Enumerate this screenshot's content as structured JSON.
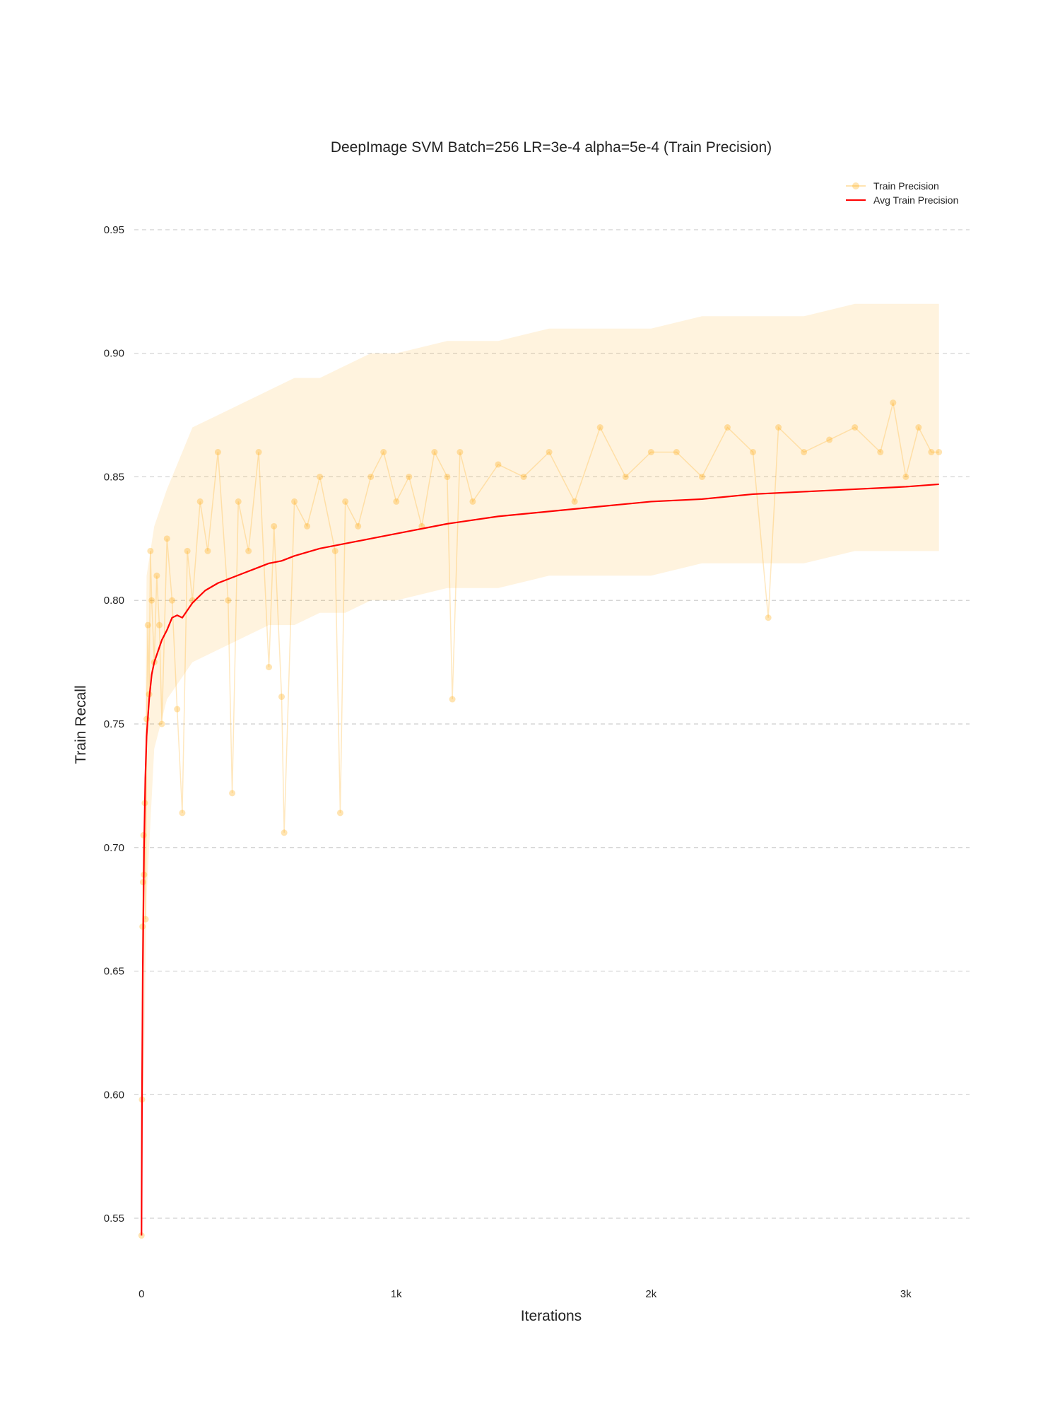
{
  "chart_data": {
    "type": "line",
    "title": "DeepImage SVM Batch=256 LR=3e-4 alpha=5e-4 (Train Precision)",
    "xlabel": "Iterations",
    "ylabel": "Train Recall",
    "xlim": [
      -70,
      3300
    ],
    "ylim": [
      0.532,
      0.968
    ],
    "grid": true,
    "legend_position": "top-right",
    "x_ticks": [
      {
        "value": 0,
        "label": "0"
      },
      {
        "value": 1000,
        "label": "1k"
      },
      {
        "value": 2000,
        "label": "2k"
      },
      {
        "value": 3000,
        "label": "3k"
      }
    ],
    "y_ticks": [
      {
        "value": 0.55,
        "label": "0.55"
      },
      {
        "value": 0.6,
        "label": "0.60"
      },
      {
        "value": 0.65,
        "label": "0.65"
      },
      {
        "value": 0.7,
        "label": "0.70"
      },
      {
        "value": 0.75,
        "label": "0.75"
      },
      {
        "value": 0.8,
        "label": "0.80"
      },
      {
        "value": 0.85,
        "label": "0.85"
      },
      {
        "value": 0.9,
        "label": "0.90"
      },
      {
        "value": 0.95,
        "label": "0.95"
      }
    ],
    "series": [
      {
        "name": "Train Precision",
        "style": "line+markers",
        "color": "#ffa500",
        "opacity": 0.25,
        "x": [
          0,
          2,
          4,
          6,
          8,
          10,
          13,
          16,
          20,
          25,
          30,
          35,
          40,
          50,
          60,
          70,
          80,
          100,
          120,
          140,
          160,
          180,
          200,
          230,
          260,
          300,
          340,
          356,
          380,
          420,
          460,
          500,
          520,
          550,
          560,
          600,
          650,
          700,
          760,
          780,
          800,
          850,
          900,
          950,
          1000,
          1050,
          1100,
          1150,
          1200,
          1220,
          1250,
          1300,
          1400,
          1500,
          1600,
          1700,
          1800,
          1900,
          2000,
          2100,
          2200,
          2300,
          2400,
          2460,
          2500,
          2600,
          2700,
          2800,
          2900,
          2950,
          3000,
          3050,
          3100,
          3130
        ],
        "y": [
          0.543,
          0.598,
          0.668,
          0.686,
          0.705,
          0.689,
          0.718,
          0.671,
          0.752,
          0.79,
          0.762,
          0.82,
          0.8,
          0.775,
          0.81,
          0.79,
          0.75,
          0.825,
          0.8,
          0.756,
          0.714,
          0.82,
          0.8,
          0.84,
          0.82,
          0.86,
          0.8,
          0.722,
          0.84,
          0.82,
          0.86,
          0.773,
          0.83,
          0.761,
          0.706,
          0.84,
          0.83,
          0.85,
          0.82,
          0.714,
          0.84,
          0.83,
          0.85,
          0.86,
          0.84,
          0.85,
          0.83,
          0.86,
          0.85,
          0.76,
          0.86,
          0.84,
          0.855,
          0.85,
          0.86,
          0.84,
          0.87,
          0.85,
          0.86,
          0.86,
          0.85,
          0.87,
          0.86,
          0.793,
          0.87,
          0.86,
          0.865,
          0.87,
          0.86,
          0.88,
          0.85,
          0.87,
          0.86,
          0.86
        ],
        "band": {
          "x": [
            0,
            20,
            50,
            100,
            200,
            300,
            400,
            500,
            600,
            700,
            800,
            900,
            1000,
            1200,
            1400,
            1600,
            1800,
            2000,
            2200,
            2400,
            2600,
            2800,
            3000,
            3130
          ],
          "high": [
            0.55,
            0.81,
            0.83,
            0.845,
            0.87,
            0.875,
            0.88,
            0.885,
            0.89,
            0.89,
            0.895,
            0.9,
            0.9,
            0.905,
            0.905,
            0.91,
            0.91,
            0.91,
            0.915,
            0.915,
            0.915,
            0.92,
            0.92,
            0.92
          ],
          "low": [
            0.543,
            0.68,
            0.74,
            0.76,
            0.775,
            0.78,
            0.785,
            0.79,
            0.79,
            0.795,
            0.795,
            0.8,
            0.8,
            0.805,
            0.805,
            0.81,
            0.81,
            0.81,
            0.815,
            0.815,
            0.815,
            0.82,
            0.82,
            0.82
          ]
        }
      },
      {
        "name": "Avg Train Precision",
        "style": "line",
        "color": "#ff0000",
        "x": [
          0,
          2,
          5,
          10,
          15,
          20,
          30,
          40,
          50,
          60,
          80,
          100,
          120,
          140,
          160,
          180,
          200,
          250,
          300,
          350,
          400,
          450,
          500,
          550,
          600,
          700,
          800,
          900,
          1000,
          1200,
          1400,
          1600,
          1800,
          2000,
          2200,
          2400,
          2600,
          2800,
          3000,
          3130
        ],
        "y": [
          0.543,
          0.6,
          0.65,
          0.7,
          0.728,
          0.745,
          0.76,
          0.77,
          0.775,
          0.778,
          0.784,
          0.788,
          0.793,
          0.794,
          0.793,
          0.796,
          0.799,
          0.804,
          0.807,
          0.809,
          0.811,
          0.813,
          0.815,
          0.816,
          0.818,
          0.821,
          0.823,
          0.825,
          0.827,
          0.831,
          0.834,
          0.836,
          0.838,
          0.84,
          0.841,
          0.843,
          0.844,
          0.845,
          0.846,
          0.847
        ]
      }
    ]
  }
}
